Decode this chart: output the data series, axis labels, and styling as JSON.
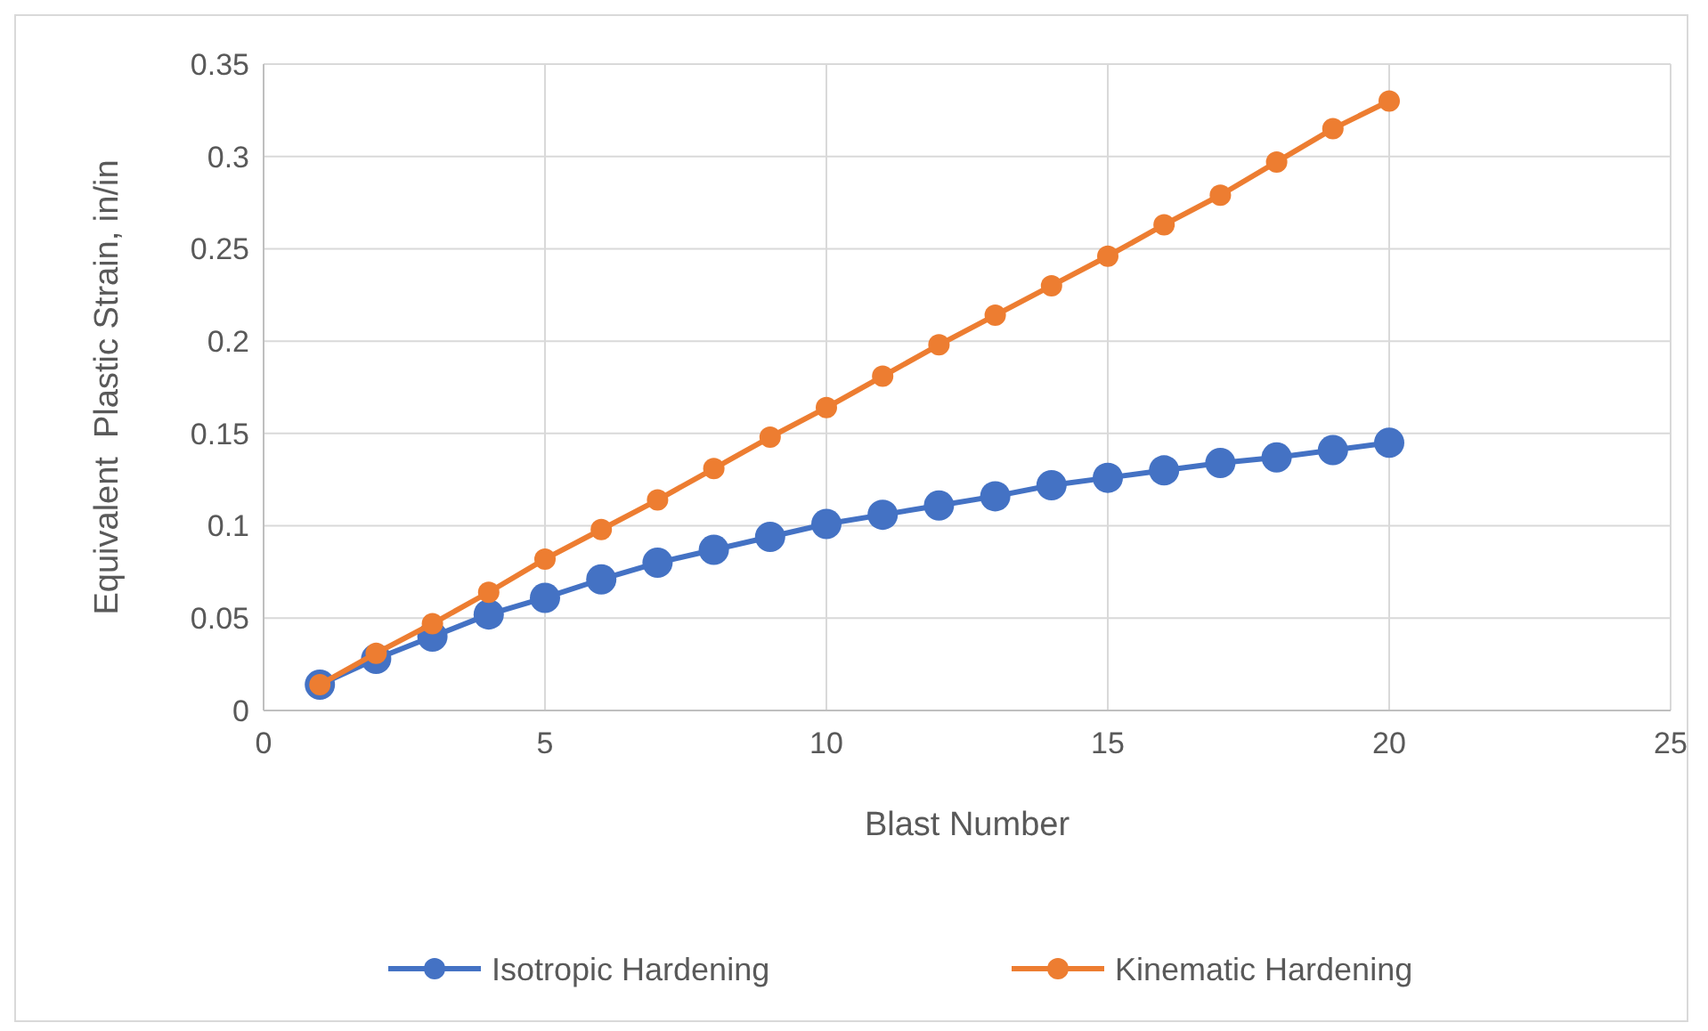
{
  "chart_data": {
    "type": "line",
    "xlabel": "Blast Number",
    "ylabel": "Equivalent  Plastic Strain, in/in",
    "x": [
      1,
      2,
      3,
      4,
      5,
      6,
      7,
      8,
      9,
      10,
      11,
      12,
      13,
      14,
      15,
      16,
      17,
      18,
      19,
      20
    ],
    "series": [
      {
        "name": "Isotropic Hardening",
        "color": "#4472c4",
        "values": [
          0.014,
          0.028,
          0.04,
          0.052,
          0.061,
          0.071,
          0.08,
          0.087,
          0.094,
          0.101,
          0.106,
          0.111,
          0.116,
          0.122,
          0.126,
          0.13,
          0.134,
          0.137,
          0.141,
          0.145
        ]
      },
      {
        "name": "Kinematic Hardening",
        "color": "#ed7d31",
        "values": [
          0.014,
          0.031,
          0.047,
          0.064,
          0.082,
          0.098,
          0.114,
          0.131,
          0.148,
          0.164,
          0.181,
          0.198,
          0.214,
          0.23,
          0.246,
          0.263,
          0.279,
          0.297,
          0.315,
          0.33
        ]
      }
    ],
    "xlim": [
      0,
      25
    ],
    "xticks": [
      0,
      5,
      10,
      15,
      20,
      25
    ],
    "ylim": [
      0,
      0.35
    ],
    "yticks": [
      0,
      0.05,
      0.1,
      0.15,
      0.2,
      0.25,
      0.3,
      0.35
    ],
    "grid": true,
    "legend": "bottom",
    "marker": "circle",
    "line_style": "solid"
  }
}
